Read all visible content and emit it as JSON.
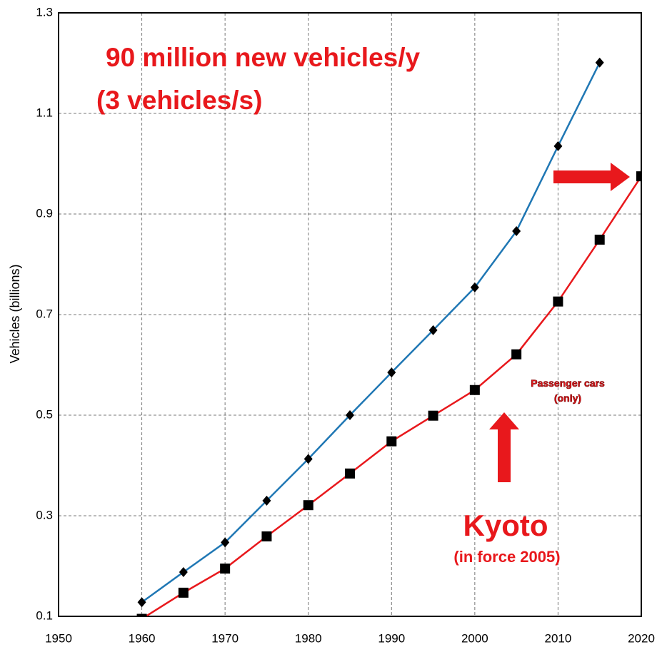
{
  "chart_data": {
    "type": "line",
    "y_label": "Vehicles (billions)",
    "x": [
      1960,
      1965,
      1970,
      1975,
      1980,
      1985,
      1990,
      1995,
      2000,
      2005,
      2010,
      2015,
      2020
    ],
    "series": [
      {
        "color": "#1f77b4",
        "marker": "diamond",
        "values": [
          0.128,
          0.188,
          0.247,
          0.33,
          0.413,
          0.5,
          0.585,
          0.669,
          0.754,
          0.866,
          1.035,
          1.201,
          null
        ]
      },
      {
        "color": "#e8181c",
        "marker": "square",
        "values": [
          0.095,
          0.147,
          0.195,
          0.259,
          0.321,
          0.384,
          0.448,
          0.499,
          0.55,
          0.621,
          0.726,
          0.849,
          0.975
        ]
      }
    ],
    "xlim": [
      1950,
      2020
    ],
    "xticks": [
      1950,
      1960,
      1970,
      1980,
      1990,
      2000,
      2010,
      2020
    ],
    "ylim": [
      0.1,
      1.3
    ],
    "yticks": [
      0.1,
      0.3,
      0.5,
      0.7,
      0.9,
      1.1,
      1.3
    ],
    "grid": true,
    "annotations": [
      "90 million new vehicles/y",
      "(3 vehicles/s)",
      "Passenger cars",
      "(only)",
      "Kyoto",
      "(in force 2005)"
    ]
  }
}
